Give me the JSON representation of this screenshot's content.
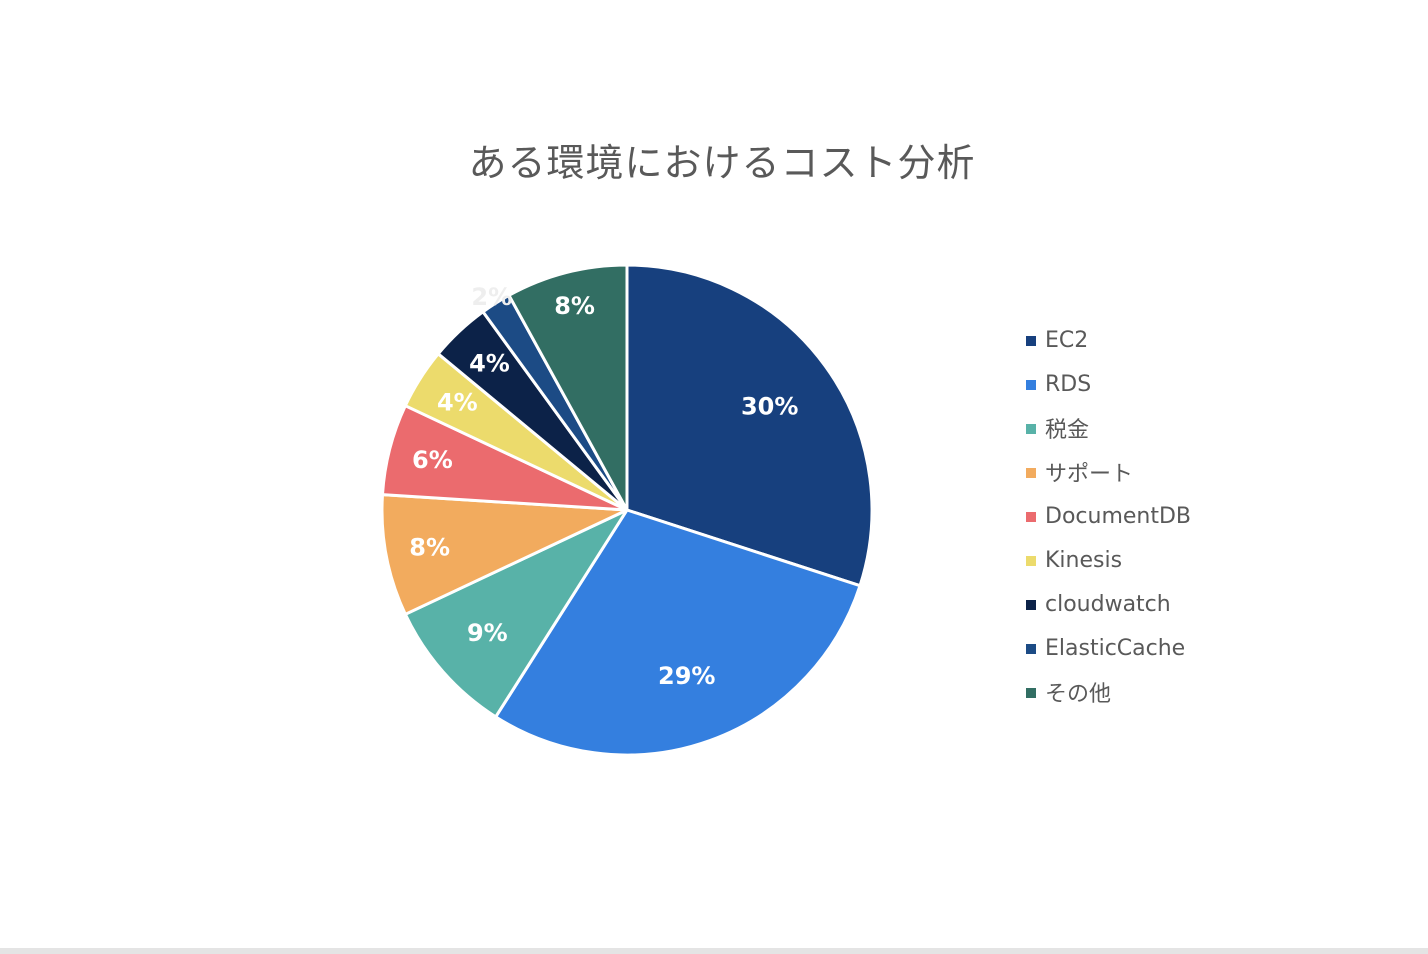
{
  "chart_data": {
    "type": "pie",
    "title": "ある環境におけるコスト分析",
    "legend_position": "right",
    "slices": [
      {
        "name": "EC2",
        "value": 30,
        "label": "30%",
        "color": "#17407e",
        "label_color": "#ffffff"
      },
      {
        "name": "RDS",
        "value": 29,
        "label": "29%",
        "color": "#347fdf",
        "label_color": "#ffffff"
      },
      {
        "name": "税金",
        "value": 9,
        "label": "9%",
        "color": "#58b2a8",
        "label_color": "#ffffff"
      },
      {
        "name": "サポート",
        "value": 8,
        "label": "8%",
        "color": "#f2ab5e",
        "label_color": "#ffffff"
      },
      {
        "name": "DocumentDB",
        "value": 6,
        "label": "6%",
        "color": "#eb6b6e",
        "label_color": "#ffffff"
      },
      {
        "name": "Kinesis",
        "value": 4,
        "label": "4%",
        "color": "#ecdb6c",
        "label_color": "#ffffff"
      },
      {
        "name": "cloudwatch",
        "value": 4,
        "label": "4%",
        "color": "#0c2248",
        "label_color": "#ffffff"
      },
      {
        "name": "ElasticCache",
        "value": 2,
        "label": "2%",
        "color": "#1c4b85",
        "label_color": "#eeeeee"
      },
      {
        "name": "その他",
        "value": 8,
        "label": "8%",
        "color": "#326e63",
        "label_color": "#ffffff"
      }
    ]
  }
}
